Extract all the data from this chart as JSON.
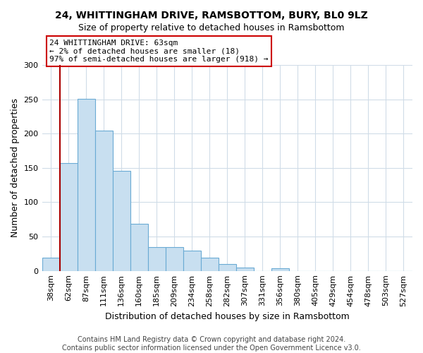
{
  "title": "24, WHITTINGHAM DRIVE, RAMSBOTTOM, BURY, BL0 9LZ",
  "subtitle": "Size of property relative to detached houses in Ramsbottom",
  "xlabel": "Distribution of detached houses by size in Ramsbottom",
  "ylabel": "Number of detached properties",
  "bar_labels": [
    "38sqm",
    "62sqm",
    "87sqm",
    "111sqm",
    "136sqm",
    "160sqm",
    "185sqm",
    "209sqm",
    "234sqm",
    "258sqm",
    "282sqm",
    "307sqm",
    "331sqm",
    "356sqm",
    "380sqm",
    "405sqm",
    "429sqm",
    "454sqm",
    "478sqm",
    "503sqm",
    "527sqm"
  ],
  "bar_heights": [
    19,
    157,
    251,
    204,
    146,
    69,
    35,
    35,
    29,
    19,
    10,
    5,
    0,
    4,
    0,
    0,
    0,
    0,
    0,
    0,
    0
  ],
  "bar_color": "#c8dff0",
  "bar_edge_color": "#6aaad4",
  "ylim": [
    0,
    300
  ],
  "yticks": [
    0,
    50,
    100,
    150,
    200,
    250,
    300
  ],
  "vline_x_idx": 1,
  "vline_color": "#aa0000",
  "annotation_title": "24 WHITTINGHAM DRIVE: 63sqm",
  "annotation_line1": "← 2% of detached houses are smaller (18)",
  "annotation_line2": "97% of semi-detached houses are larger (918) →",
  "annotation_box_color": "#ffffff",
  "annotation_box_edge": "#cc0000",
  "footer_line1": "Contains HM Land Registry data © Crown copyright and database right 2024.",
  "footer_line2": "Contains public sector information licensed under the Open Government Licence v3.0.",
  "title_fontsize": 10,
  "xlabel_fontsize": 9,
  "ylabel_fontsize": 9,
  "tick_fontsize": 8,
  "footer_fontsize": 7,
  "background_color": "#ffffff",
  "grid_color": "#d0dce8"
}
